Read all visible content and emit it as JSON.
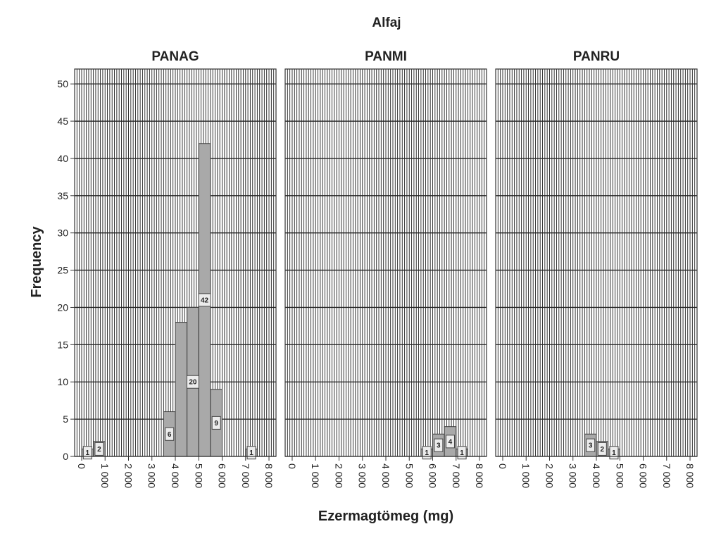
{
  "chart_data": {
    "type": "bar",
    "title": "Alfaj",
    "xlabel": "Ezermagtömeg (mg)",
    "ylabel": "Frequency",
    "ylim": [
      0,
      52
    ],
    "xlim": [
      -300,
      8300
    ],
    "yticks": [
      0,
      5,
      10,
      15,
      20,
      25,
      30,
      35,
      40,
      45,
      50
    ],
    "ytick_labels": [
      "0",
      "5",
      "10",
      "15",
      "20",
      "25",
      "30",
      "35",
      "40",
      "45",
      "50"
    ],
    "xticks": [
      0,
      1000,
      2000,
      3000,
      4000,
      5000,
      6000,
      7000,
      8000
    ],
    "xtick_labels": [
      "0",
      "1 000",
      "2 000",
      "3 000",
      "4 000",
      "5 000",
      "6 000",
      "7 000",
      "8 000"
    ],
    "bin_width": 500,
    "grid": true,
    "panels": [
      {
        "name": "PANAG",
        "bins": [
          {
            "start": 0,
            "end": 500,
            "value": 1,
            "label": "1"
          },
          {
            "start": 500,
            "end": 1000,
            "value": 2,
            "label": "2"
          },
          {
            "start": 3500,
            "end": 4000,
            "value": 6,
            "label": "6"
          },
          {
            "start": 4000,
            "end": 4500,
            "value": 18,
            "label": ""
          },
          {
            "start": 4500,
            "end": 5000,
            "value": 20,
            "label": "20"
          },
          {
            "start": 5000,
            "end": 5500,
            "value": 42,
            "label": "42"
          },
          {
            "start": 5500,
            "end": 6000,
            "value": 9,
            "label": "9"
          },
          {
            "start": 7000,
            "end": 7500,
            "value": 1,
            "label": "1"
          }
        ]
      },
      {
        "name": "PANMI",
        "bins": [
          {
            "start": 5500,
            "end": 6000,
            "value": 1,
            "label": "1"
          },
          {
            "start": 6000,
            "end": 6500,
            "value": 3,
            "label": "3"
          },
          {
            "start": 6500,
            "end": 7000,
            "value": 4,
            "label": "4"
          },
          {
            "start": 7000,
            "end": 7500,
            "value": 1,
            "label": "1"
          }
        ]
      },
      {
        "name": "PANRU",
        "bins": [
          {
            "start": 3500,
            "end": 4000,
            "value": 3,
            "label": "3"
          },
          {
            "start": 4000,
            "end": 4500,
            "value": 2,
            "label": "2"
          },
          {
            "start": 4500,
            "end": 5000,
            "value": 1,
            "label": "1"
          }
        ]
      }
    ],
    "colors": {
      "bar_fill": "#a9a9a9",
      "bar_stroke": "#3a3a3a",
      "grid": "#222222",
      "frame": "#333333",
      "label_box": "#ececec"
    }
  }
}
